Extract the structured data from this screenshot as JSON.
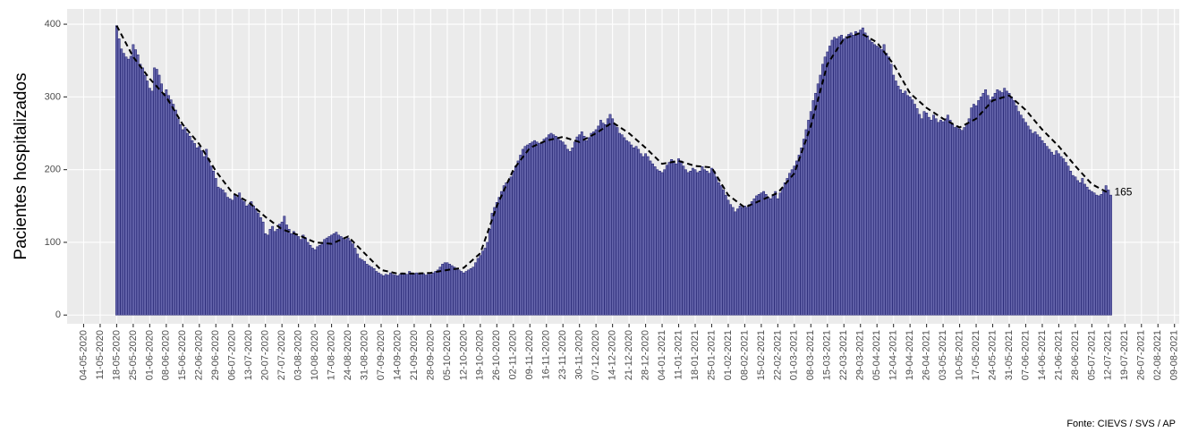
{
  "chart_data": {
    "type": "bar",
    "ylabel": "Pacientes hospitalizados",
    "source": "Fonte: CIEVS / SVS / AP",
    "color": "#6767ad",
    "grid": true,
    "ylim": [
      -12,
      421
    ],
    "yticks": [
      0,
      100,
      200,
      300,
      400
    ],
    "xlim": [
      "27-04-2020",
      "11-08-2021"
    ],
    "xticks": [
      "04-05-2020",
      "11-05-2020",
      "18-05-2020",
      "25-05-2020",
      "01-06-2020",
      "08-06-2020",
      "15-06-2020",
      "22-06-2020",
      "29-06-2020",
      "06-07-2020",
      "13-07-2020",
      "20-07-2020",
      "27-07-2020",
      "03-08-2020",
      "10-08-2020",
      "17-08-2020",
      "24-08-2020",
      "31-08-2020",
      "07-09-2020",
      "14-09-2020",
      "21-09-2020",
      "28-09-2020",
      "05-10-2020",
      "12-10-2020",
      "19-10-2020",
      "26-10-2020",
      "02-11-2020",
      "09-11-2020",
      "16-11-2020",
      "23-11-2020",
      "30-11-2020",
      "07-12-2020",
      "14-12-2020",
      "21-12-2020",
      "28-12-2020",
      "04-01-2021",
      "11-01-2021",
      "18-01-2021",
      "25-01-2021",
      "01-02-2021",
      "08-02-2021",
      "15-02-2021",
      "22-02-2021",
      "01-03-2021",
      "08-03-2021",
      "15-03-2021",
      "22-03-2021",
      "29-03-2021",
      "05-04-2021",
      "12-04-2021",
      "19-04-2021",
      "26-04-2021",
      "03-05-2021",
      "10-05-2021",
      "17-05-2021",
      "24-05-2021",
      "31-05-2021",
      "07-06-2021",
      "14-06-2021",
      "21-06-2021",
      "28-06-2021",
      "05-07-2021",
      "12-07-2021",
      "19-07-2021",
      "26-07-2021",
      "02-08-2021",
      "09-08-2021"
    ],
    "x": [
      "18-05-2020",
      "19-05-2020",
      "20-05-2020",
      "21-05-2020",
      "22-05-2020",
      "23-05-2020",
      "24-05-2020",
      "25-05-2020",
      "26-05-2020",
      "27-05-2020",
      "28-05-2020",
      "29-05-2020",
      "30-05-2020",
      "31-05-2020",
      "01-06-2020",
      "02-06-2020",
      "03-06-2020",
      "04-06-2020",
      "05-06-2020",
      "06-06-2020",
      "07-06-2020",
      "08-06-2020",
      "09-06-2020",
      "10-06-2020",
      "11-06-2020",
      "12-06-2020",
      "13-06-2020",
      "14-06-2020",
      "15-06-2020",
      "16-06-2020",
      "17-06-2020",
      "18-06-2020",
      "19-06-2020",
      "20-06-2020",
      "21-06-2020",
      "22-06-2020",
      "23-06-2020",
      "24-06-2020",
      "25-06-2020",
      "26-06-2020",
      "27-06-2020",
      "28-06-2020",
      "29-06-2020",
      "30-06-2020",
      "01-07-2020",
      "02-07-2020",
      "03-07-2020",
      "04-07-2020",
      "05-07-2020",
      "06-07-2020",
      "07-07-2020",
      "08-07-2020",
      "09-07-2020",
      "10-07-2020",
      "11-07-2020",
      "12-07-2020",
      "13-07-2020",
      "14-07-2020",
      "15-07-2020",
      "16-07-2020",
      "17-07-2020",
      "18-07-2020",
      "19-07-2020",
      "20-07-2020",
      "21-07-2020",
      "22-07-2020",
      "23-07-2020",
      "24-07-2020",
      "25-07-2020",
      "26-07-2020",
      "27-07-2020",
      "28-07-2020",
      "29-07-2020",
      "30-07-2020",
      "31-07-2020",
      "01-08-2020",
      "02-08-2020",
      "03-08-2020",
      "04-08-2020",
      "05-08-2020",
      "06-08-2020",
      "07-08-2020",
      "08-08-2020",
      "09-08-2020",
      "10-08-2020",
      "11-08-2020",
      "12-08-2020",
      "13-08-2020",
      "14-08-2020",
      "15-08-2020",
      "16-08-2020",
      "17-08-2020",
      "18-08-2020",
      "19-08-2020",
      "20-08-2020",
      "21-08-2020",
      "22-08-2020",
      "23-08-2020",
      "24-08-2020",
      "25-08-2020",
      "26-08-2020",
      "27-08-2020",
      "28-08-2020",
      "29-08-2020",
      "30-08-2020",
      "31-08-2020",
      "01-09-2020",
      "02-09-2020",
      "03-09-2020",
      "04-09-2020",
      "05-09-2020",
      "06-09-2020",
      "07-09-2020",
      "08-09-2020",
      "09-09-2020",
      "10-09-2020",
      "11-09-2020",
      "12-09-2020",
      "13-09-2020",
      "14-09-2020",
      "15-09-2020",
      "16-09-2020",
      "17-09-2020",
      "18-09-2020",
      "19-09-2020",
      "20-09-2020",
      "21-09-2020",
      "22-09-2020",
      "23-09-2020",
      "24-09-2020",
      "25-09-2020",
      "26-09-2020",
      "27-09-2020",
      "28-09-2020",
      "29-09-2020",
      "30-09-2020",
      "01-10-2020",
      "02-10-2020",
      "03-10-2020",
      "04-10-2020",
      "05-10-2020",
      "06-10-2020",
      "07-10-2020",
      "08-10-2020",
      "09-10-2020",
      "10-10-2020",
      "11-10-2020",
      "12-10-2020",
      "13-10-2020",
      "14-10-2020",
      "15-10-2020",
      "16-10-2020",
      "17-10-2020",
      "18-10-2020",
      "19-10-2020",
      "20-10-2020",
      "21-10-2020",
      "22-10-2020",
      "23-10-2020",
      "24-10-2020",
      "25-10-2020",
      "26-10-2020",
      "27-10-2020",
      "28-10-2020",
      "29-10-2020",
      "30-10-2020",
      "31-10-2020",
      "01-11-2020",
      "02-11-2020",
      "03-11-2020",
      "04-11-2020",
      "05-11-2020",
      "06-11-2020",
      "07-11-2020",
      "08-11-2020",
      "09-11-2020",
      "10-11-2020",
      "11-11-2020",
      "12-11-2020",
      "13-11-2020",
      "14-11-2020",
      "15-11-2020",
      "16-11-2020",
      "17-11-2020",
      "18-11-2020",
      "19-11-2020",
      "20-11-2020",
      "21-11-2020",
      "22-11-2020",
      "23-11-2020",
      "24-11-2020",
      "25-11-2020",
      "26-11-2020",
      "27-11-2020",
      "28-11-2020",
      "29-11-2020",
      "30-11-2020",
      "01-12-2020",
      "02-12-2020",
      "03-12-2020",
      "04-12-2020",
      "05-12-2020",
      "06-12-2020",
      "07-12-2020",
      "08-12-2020",
      "09-12-2020",
      "10-12-2020",
      "11-12-2020",
      "12-12-2020",
      "13-12-2020",
      "14-12-2020",
      "15-12-2020",
      "16-12-2020",
      "17-12-2020",
      "18-12-2020",
      "19-12-2020",
      "20-12-2020",
      "21-12-2020",
      "22-12-2020",
      "23-12-2020",
      "24-12-2020",
      "25-12-2020",
      "26-12-2020",
      "27-12-2020",
      "28-12-2020",
      "29-12-2020",
      "30-12-2020",
      "31-12-2020",
      "01-01-2021",
      "02-01-2021",
      "03-01-2021",
      "04-01-2021",
      "05-01-2021",
      "06-01-2021",
      "07-01-2021",
      "08-01-2021",
      "09-01-2021",
      "10-01-2021",
      "11-01-2021",
      "12-01-2021",
      "13-01-2021",
      "14-01-2021",
      "15-01-2021",
      "16-01-2021",
      "17-01-2021",
      "18-01-2021",
      "19-01-2021",
      "20-01-2021",
      "21-01-2021",
      "22-01-2021",
      "23-01-2021",
      "24-01-2021",
      "25-01-2021",
      "26-01-2021",
      "27-01-2021",
      "28-01-2021",
      "29-01-2021",
      "30-01-2021",
      "31-01-2021",
      "01-02-2021",
      "02-02-2021",
      "03-02-2021",
      "04-02-2021",
      "05-02-2021",
      "06-02-2021",
      "07-02-2021",
      "08-02-2021",
      "09-02-2021",
      "10-02-2021",
      "11-02-2021",
      "12-02-2021",
      "13-02-2021",
      "14-02-2021",
      "15-02-2021",
      "16-02-2021",
      "17-02-2021",
      "18-02-2021",
      "19-02-2021",
      "20-02-2021",
      "21-02-2021",
      "22-02-2021",
      "23-02-2021",
      "24-02-2021",
      "25-02-2021",
      "26-02-2021",
      "27-02-2021",
      "28-02-2021",
      "01-03-2021",
      "02-03-2021",
      "03-03-2021",
      "04-03-2021",
      "05-03-2021",
      "06-03-2021",
      "07-03-2021",
      "08-03-2021",
      "09-03-2021",
      "10-03-2021",
      "11-03-2021",
      "12-03-2021",
      "13-03-2021",
      "14-03-2021",
      "15-03-2021",
      "16-03-2021",
      "17-03-2021",
      "18-03-2021",
      "19-03-2021",
      "20-03-2021",
      "21-03-2021",
      "22-03-2021",
      "23-03-2021",
      "24-03-2021",
      "25-03-2021",
      "26-03-2021",
      "27-03-2021",
      "28-03-2021",
      "29-03-2021",
      "30-03-2021",
      "31-03-2021",
      "01-04-2021",
      "02-04-2021",
      "03-04-2021",
      "04-04-2021",
      "05-04-2021",
      "06-04-2021",
      "07-04-2021",
      "08-04-2021",
      "09-04-2021",
      "10-04-2021",
      "11-04-2021",
      "12-04-2021",
      "13-04-2021",
      "14-04-2021",
      "15-04-2021",
      "16-04-2021",
      "17-04-2021",
      "18-04-2021",
      "19-04-2021",
      "20-04-2021",
      "21-04-2021",
      "22-04-2021",
      "23-04-2021",
      "24-04-2021",
      "25-04-2021",
      "26-04-2021",
      "27-04-2021",
      "28-04-2021",
      "29-04-2021",
      "30-04-2021",
      "01-05-2021",
      "02-05-2021",
      "03-05-2021",
      "04-05-2021",
      "05-05-2021",
      "06-05-2021",
      "07-05-2021",
      "08-05-2021",
      "09-05-2021",
      "10-05-2021",
      "11-05-2021",
      "12-05-2021",
      "13-05-2021",
      "14-05-2021",
      "15-05-2021",
      "16-05-2021",
      "17-05-2021",
      "18-05-2021",
      "19-05-2021",
      "20-05-2021",
      "21-05-2021",
      "22-05-2021",
      "23-05-2021",
      "24-05-2021",
      "25-05-2021",
      "26-05-2021",
      "27-05-2021",
      "28-05-2021",
      "29-05-2021",
      "30-05-2021",
      "31-05-2021",
      "01-06-2021",
      "02-06-2021",
      "03-06-2021",
      "04-06-2021",
      "05-06-2021",
      "06-06-2021",
      "07-06-2021",
      "08-06-2021",
      "09-06-2021",
      "10-06-2021",
      "11-06-2021",
      "12-06-2021",
      "13-06-2021",
      "14-06-2021",
      "15-06-2021",
      "16-06-2021",
      "17-06-2021",
      "18-06-2021",
      "19-06-2021",
      "20-06-2021",
      "21-06-2021",
      "22-06-2021",
      "23-06-2021",
      "24-06-2021",
      "25-06-2021",
      "26-06-2021",
      "27-06-2021",
      "28-06-2021",
      "29-06-2021",
      "30-06-2021",
      "01-07-2021",
      "02-07-2021",
      "03-07-2021",
      "04-07-2021",
      "05-07-2021",
      "06-07-2021",
      "07-07-2021",
      "08-07-2021",
      "09-07-2021",
      "10-07-2021",
      "11-07-2021",
      "12-07-2021",
      "13-07-2021"
    ],
    "values": [
      398,
      380,
      366,
      360,
      355,
      352,
      356,
      372,
      365,
      358,
      345,
      340,
      330,
      322,
      312,
      308,
      340,
      338,
      330,
      318,
      305,
      310,
      302,
      296,
      290,
      282,
      270,
      262,
      255,
      258,
      250,
      246,
      240,
      236,
      230,
      232,
      226,
      218,
      228,
      215,
      205,
      198,
      188,
      176,
      174,
      172,
      168,
      162,
      160,
      158,
      165,
      162,
      168,
      160,
      156,
      150,
      152,
      156,
      150,
      146,
      140,
      134,
      128,
      112,
      110,
      118,
      122,
      115,
      118,
      125,
      128,
      136,
      124,
      118,
      112,
      115,
      110,
      108,
      104,
      110,
      106,
      100,
      96,
      92,
      90,
      94,
      96,
      100,
      104,
      106,
      108,
      110,
      112,
      114,
      110,
      108,
      106,
      104,
      106,
      102,
      98,
      92,
      84,
      78,
      76,
      74,
      70,
      68,
      66,
      64,
      60,
      58,
      56,
      54,
      56,
      55,
      58,
      56,
      55,
      54,
      56,
      58,
      57,
      56,
      60,
      58,
      57,
      58,
      56,
      58,
      57,
      55,
      58,
      56,
      58,
      60,
      62,
      66,
      70,
      72,
      72,
      70,
      68,
      66,
      64,
      62,
      60,
      58,
      60,
      62,
      64,
      66,
      72,
      78,
      82,
      88,
      92,
      100,
      118,
      140,
      148,
      155,
      162,
      170,
      178,
      182,
      185,
      190,
      198,
      205,
      212,
      220,
      228,
      232,
      234,
      236,
      238,
      240,
      238,
      236,
      238,
      242,
      244,
      248,
      250,
      248,
      246,
      244,
      240,
      238,
      234,
      228,
      225,
      230,
      238,
      245,
      248,
      252,
      246,
      240,
      244,
      250,
      252,
      255,
      260,
      268,
      264,
      262,
      270,
      276,
      270,
      262,
      258,
      250,
      248,
      244,
      240,
      238,
      234,
      230,
      232,
      228,
      222,
      218,
      222,
      218,
      212,
      208,
      204,
      200,
      198,
      196,
      200,
      206,
      210,
      214,
      212,
      208,
      215,
      212,
      205,
      200,
      196,
      198,
      202,
      200,
      196,
      198,
      204,
      200,
      198,
      195,
      202,
      198,
      190,
      182,
      178,
      172,
      165,
      158,
      152,
      148,
      142,
      146,
      150,
      148,
      150,
      148,
      152,
      156,
      160,
      164,
      166,
      168,
      170,
      166,
      162,
      160,
      165,
      170,
      160,
      168,
      175,
      182,
      188,
      195,
      200,
      205,
      212,
      220,
      230,
      242,
      255,
      268,
      280,
      295,
      305,
      318,
      330,
      345,
      355,
      362,
      370,
      378,
      382,
      380,
      383,
      385,
      380,
      383,
      386,
      388,
      385,
      390,
      388,
      392,
      395,
      388,
      384,
      378,
      375,
      372,
      370,
      368,
      365,
      372,
      360,
      355,
      345,
      330,
      322,
      315,
      310,
      305,
      308,
      302,
      300,
      296,
      290,
      284,
      276,
      270,
      280,
      278,
      272,
      268,
      275,
      270,
      265,
      268,
      266,
      270,
      275,
      268,
      262,
      258,
      260,
      256,
      254,
      258,
      262,
      270,
      285,
      290,
      288,
      295,
      300,
      305,
      310,
      302,
      296,
      300,
      305,
      310,
      308,
      306,
      312,
      308,
      305,
      300,
      295,
      288,
      280,
      275,
      270,
      265,
      260,
      255,
      250,
      252,
      248,
      245,
      240,
      236,
      232,
      228,
      224,
      220,
      226,
      222,
      218,
      215,
      210,
      205,
      198,
      192,
      190,
      185,
      182,
      188,
      180,
      176,
      172,
      170,
      168,
      165,
      164,
      166,
      170,
      178,
      172,
      165
    ],
    "trend": {
      "color": "#000000",
      "style": "dashed",
      "x": [
        "18-05-2020",
        "25-05-2020",
        "01-06-2020",
        "08-06-2020",
        "15-06-2020",
        "22-06-2020",
        "29-06-2020",
        "06-07-2020",
        "13-07-2020",
        "20-07-2020",
        "27-07-2020",
        "03-08-2020",
        "10-08-2020",
        "17-08-2020",
        "24-08-2020",
        "31-08-2020",
        "07-09-2020",
        "14-09-2020",
        "21-09-2020",
        "28-09-2020",
        "05-10-2020",
        "12-10-2020",
        "19-10-2020",
        "26-10-2020",
        "02-11-2020",
        "09-11-2020",
        "16-11-2020",
        "23-11-2020",
        "30-11-2020",
        "07-12-2020",
        "14-12-2020",
        "21-12-2020",
        "28-12-2020",
        "04-01-2021",
        "11-01-2021",
        "18-01-2021",
        "25-01-2021",
        "01-02-2021",
        "08-02-2021",
        "15-02-2021",
        "22-02-2021",
        "01-03-2021",
        "08-03-2021",
        "15-03-2021",
        "22-03-2021",
        "29-03-2021",
        "05-04-2021",
        "12-04-2021",
        "19-04-2021",
        "26-04-2021",
        "03-05-2021",
        "10-05-2021",
        "17-05-2021",
        "24-05-2021",
        "31-05-2021",
        "07-06-2021",
        "14-06-2021",
        "21-06-2021",
        "28-06-2021",
        "05-07-2021",
        "12-07-2021"
      ],
      "values": [
        398,
        355,
        325,
        300,
        262,
        235,
        198,
        168,
        155,
        135,
        118,
        110,
        100,
        98,
        108,
        85,
        62,
        57,
        57,
        58,
        62,
        65,
        85,
        150,
        200,
        230,
        240,
        245,
        238,
        250,
        265,
        250,
        230,
        208,
        212,
        205,
        203,
        165,
        148,
        158,
        168,
        195,
        260,
        345,
        380,
        388,
        375,
        345,
        305,
        285,
        270,
        258,
        270,
        295,
        302,
        282,
        255,
        232,
        205,
        180,
        168
      ]
    }
  }
}
